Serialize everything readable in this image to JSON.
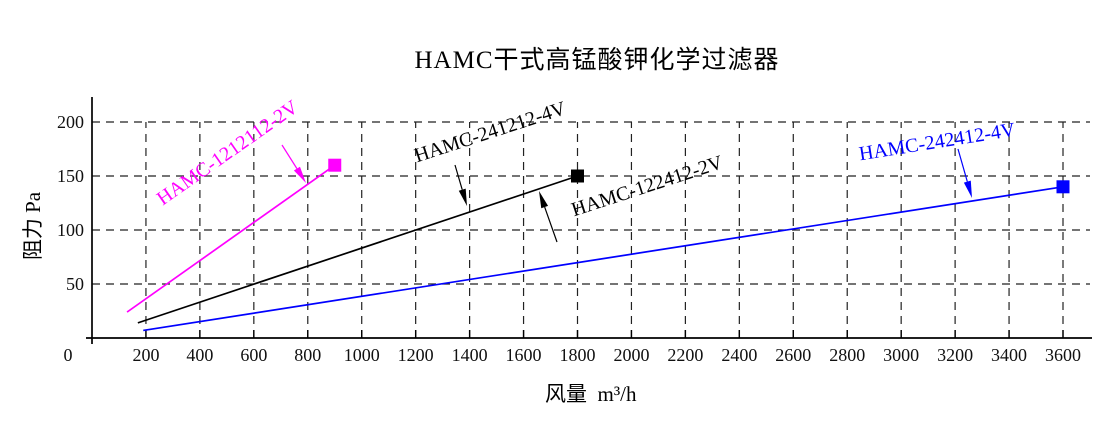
{
  "chart_data": {
    "type": "line",
    "title": "HAMC干式高锰酸钾化学过滤器",
    "xlabel": "风量  m³/h",
    "ylabel": "阻力 Pa",
    "x_unit": "m³/h",
    "y_unit": "Pa",
    "xlim": [
      0,
      3700
    ],
    "ylim": [
      0,
      220
    ],
    "x_ticks": [
      0,
      200,
      400,
      600,
      800,
      1000,
      1200,
      1400,
      1600,
      1800,
      2000,
      2200,
      2400,
      2600,
      2800,
      3000,
      3200,
      3400,
      3600
    ],
    "y_ticks": [
      50,
      100,
      150,
      200
    ],
    "grid": {
      "style": "dashed",
      "color": "#222222"
    },
    "legend": "none",
    "series": [
      {
        "name": "HAMC-1212112-2V",
        "color": "#ff00ff",
        "points": [
          [
            130,
            24
          ],
          [
            900,
            160
          ]
        ],
        "marker": {
          "shape": "square",
          "at": [
            900,
            160
          ]
        }
      },
      {
        "name": "HAMC-241212-4V",
        "also_labeled": "HAMC-122412-2V",
        "color": "#000000",
        "points": [
          [
            170,
            14
          ],
          [
            1800,
            150
          ]
        ],
        "marker": {
          "shape": "square",
          "at": [
            1800,
            150
          ]
        }
      },
      {
        "name": "HAMC-242412-4V",
        "color": "#0000ff",
        "points": [
          [
            190,
            7
          ],
          [
            3600,
            140
          ]
        ],
        "marker": {
          "shape": "square",
          "at": [
            3600,
            140
          ]
        }
      }
    ],
    "annotations": [
      {
        "text": "HAMC-1212112-2V",
        "color": "#ff00ff",
        "cx": 231,
        "cy": 158,
        "angle": -35,
        "arrow": [
          282,
          145,
          306,
          183
        ]
      },
      {
        "text": "HAMC-241212-4V",
        "color": "#000000",
        "cx": 492,
        "cy": 138,
        "angle": -18,
        "arrow": [
          455,
          165,
          467,
          206
        ]
      },
      {
        "text": "HAMC-122412-2V",
        "color": "#000000",
        "cx": 649,
        "cy": 192,
        "angle": -18,
        "arrow": [
          557,
          242,
          539,
          191
        ]
      },
      {
        "text": "HAMC-242412-4V",
        "color": "#0000ff",
        "cx": 938,
        "cy": 148,
        "angle": -9,
        "arrow": [
          958,
          149,
          972,
          198
        ]
      }
    ]
  }
}
